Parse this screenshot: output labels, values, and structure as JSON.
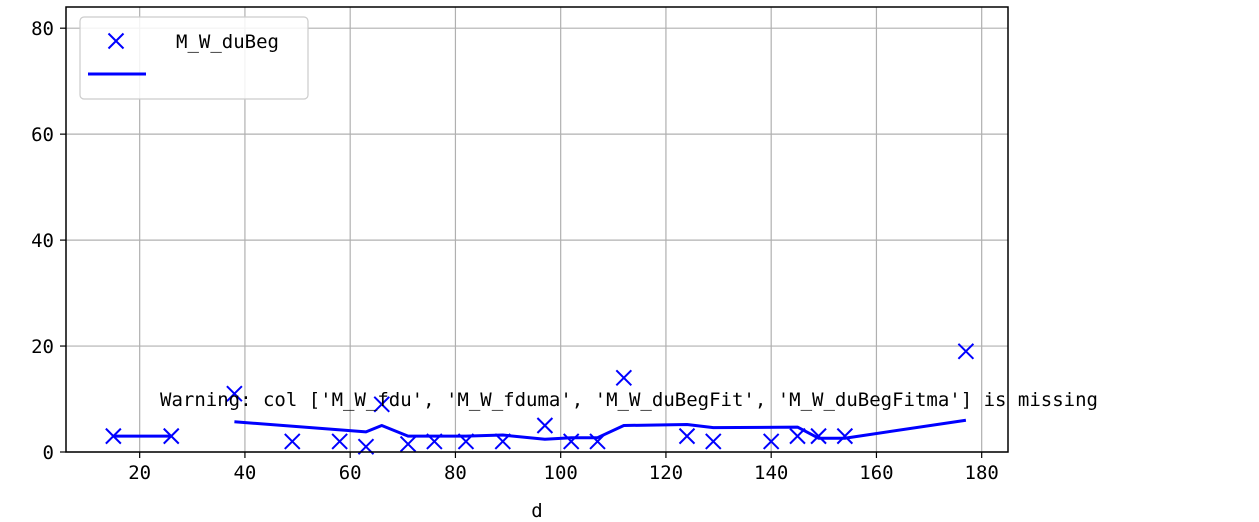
{
  "chart_data": {
    "type": "scatter",
    "xlabel": "d",
    "ylabel": "",
    "xlim": [
      6,
      185
    ],
    "ylim": [
      0,
      84
    ],
    "xticks": [
      20,
      40,
      60,
      80,
      100,
      120,
      140,
      160,
      180
    ],
    "yticks": [
      0,
      20,
      40,
      60,
      80
    ],
    "grid": true,
    "legend_position": "top-left",
    "colors": {
      "series": "#0000ff",
      "grid": "#b0b0b0",
      "axes": "#000000"
    },
    "series": [
      {
        "name": "M_W_duBeg",
        "marker": "x",
        "x": [
          15,
          26,
          38,
          49,
          58,
          63,
          66,
          71,
          76,
          82,
          89,
          97,
          102,
          107,
          112,
          124,
          129,
          140,
          145,
          149,
          154,
          177
        ],
        "y": [
          3,
          3,
          11,
          2,
          2,
          1,
          9,
          1.5,
          2,
          2,
          2,
          5,
          2,
          2,
          14,
          3,
          2,
          2,
          3,
          3,
          3,
          19
        ]
      },
      {
        "name": "",
        "marker": "line",
        "segments": [
          {
            "x": [
              15,
              26
            ],
            "y": [
              3,
              3
            ]
          },
          {
            "x": [
              38,
              63,
              66,
              71,
              82,
              89,
              97,
              102,
              107,
              112,
              124,
              129,
              145,
              149,
              154,
              177
            ],
            "y": [
              5.7,
              3.8,
              5,
              3,
              3,
              3.2,
              2.4,
              2.7,
              2.7,
              5,
              5.2,
              4.6,
              4.7,
              2.6,
              2.6,
              6
            ]
          }
        ]
      }
    ],
    "annotation": "Warning: col ['M_W_fdu', 'M_W_fduma', 'M_W_duBegFit', 'M_W_duBegFitma'] is missing"
  }
}
